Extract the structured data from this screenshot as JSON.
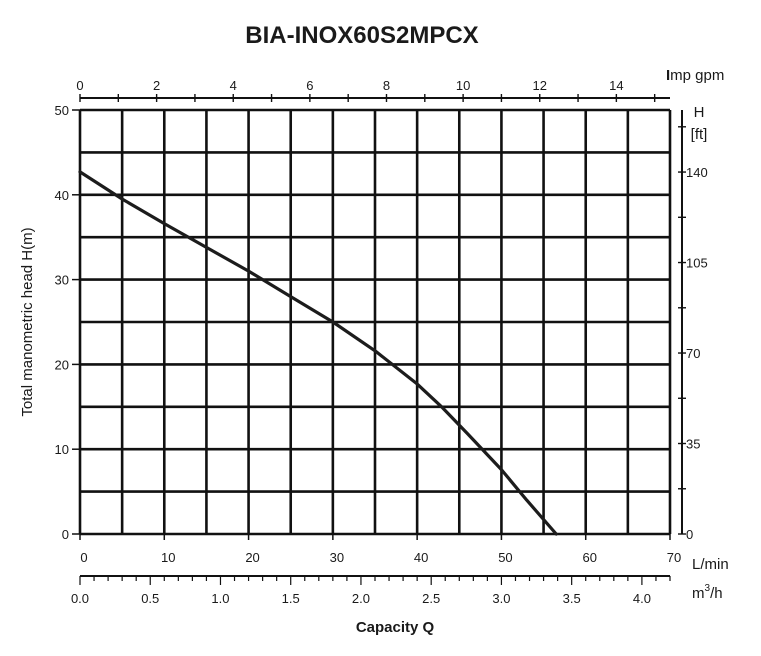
{
  "chart_data": {
    "type": "line",
    "title": "BIA-INOX60S2MPCX",
    "ylabel": "Total manometric head H(m)",
    "xlabel": "Capacity Q",
    "ylim": [
      0,
      50
    ],
    "xlim": [
      0,
      70
    ],
    "grid": true,
    "x_unit": "L/min",
    "y_ticks": [
      "0",
      "10",
      "20",
      "30",
      "40",
      "50"
    ],
    "x_ticks": [
      "0",
      "10",
      "20",
      "30",
      "40",
      "50",
      "60",
      "70"
    ],
    "top_axis": {
      "unit": "Imp gpm",
      "unit_lead": "I",
      "unit_rest": "mp gpm",
      "ticks": [
        "0",
        "2",
        "4",
        "6",
        "8",
        "10",
        "12",
        "14"
      ],
      "tick_values": [
        0,
        2,
        4,
        6,
        8,
        10,
        12,
        14
      ],
      "range": [
        0,
        15.4
      ]
    },
    "right_axis": {
      "unit_line1": "H",
      "unit_line2": "[ft]",
      "ticks": [
        "0",
        "35",
        "70",
        "105",
        "140"
      ],
      "tick_values": [
        0,
        35,
        70,
        105,
        140
      ],
      "range": [
        0,
        164
      ]
    },
    "bottom_axis2": {
      "unit_base": "m",
      "unit_sup": "3",
      "unit_tail": "/h",
      "ticks": [
        "0.0",
        "0.5",
        "1.0",
        "1.5",
        "2.0",
        "2.5",
        "3.0",
        "3.5",
        "4.0"
      ],
      "tick_values": [
        0,
        0.5,
        1.0,
        1.5,
        2.0,
        2.5,
        3.0,
        3.5,
        4.0
      ],
      "range": [
        0,
        4.2
      ]
    },
    "series": [
      {
        "x": [
          0,
          5,
          10,
          15,
          20,
          25,
          30,
          35,
          40,
          43,
          46,
          50,
          53,
          56.5
        ],
        "y": [
          42.7,
          39.5,
          36.6,
          33.8,
          31.0,
          28.0,
          25.0,
          21.6,
          17.7,
          14.9,
          11.8,
          7.6,
          4.0,
          0
        ]
      }
    ]
  },
  "colors": {
    "grid": "#111111",
    "curve": "#1c1c1c",
    "text": "#1a1a1a",
    "background": "#ffffff"
  }
}
